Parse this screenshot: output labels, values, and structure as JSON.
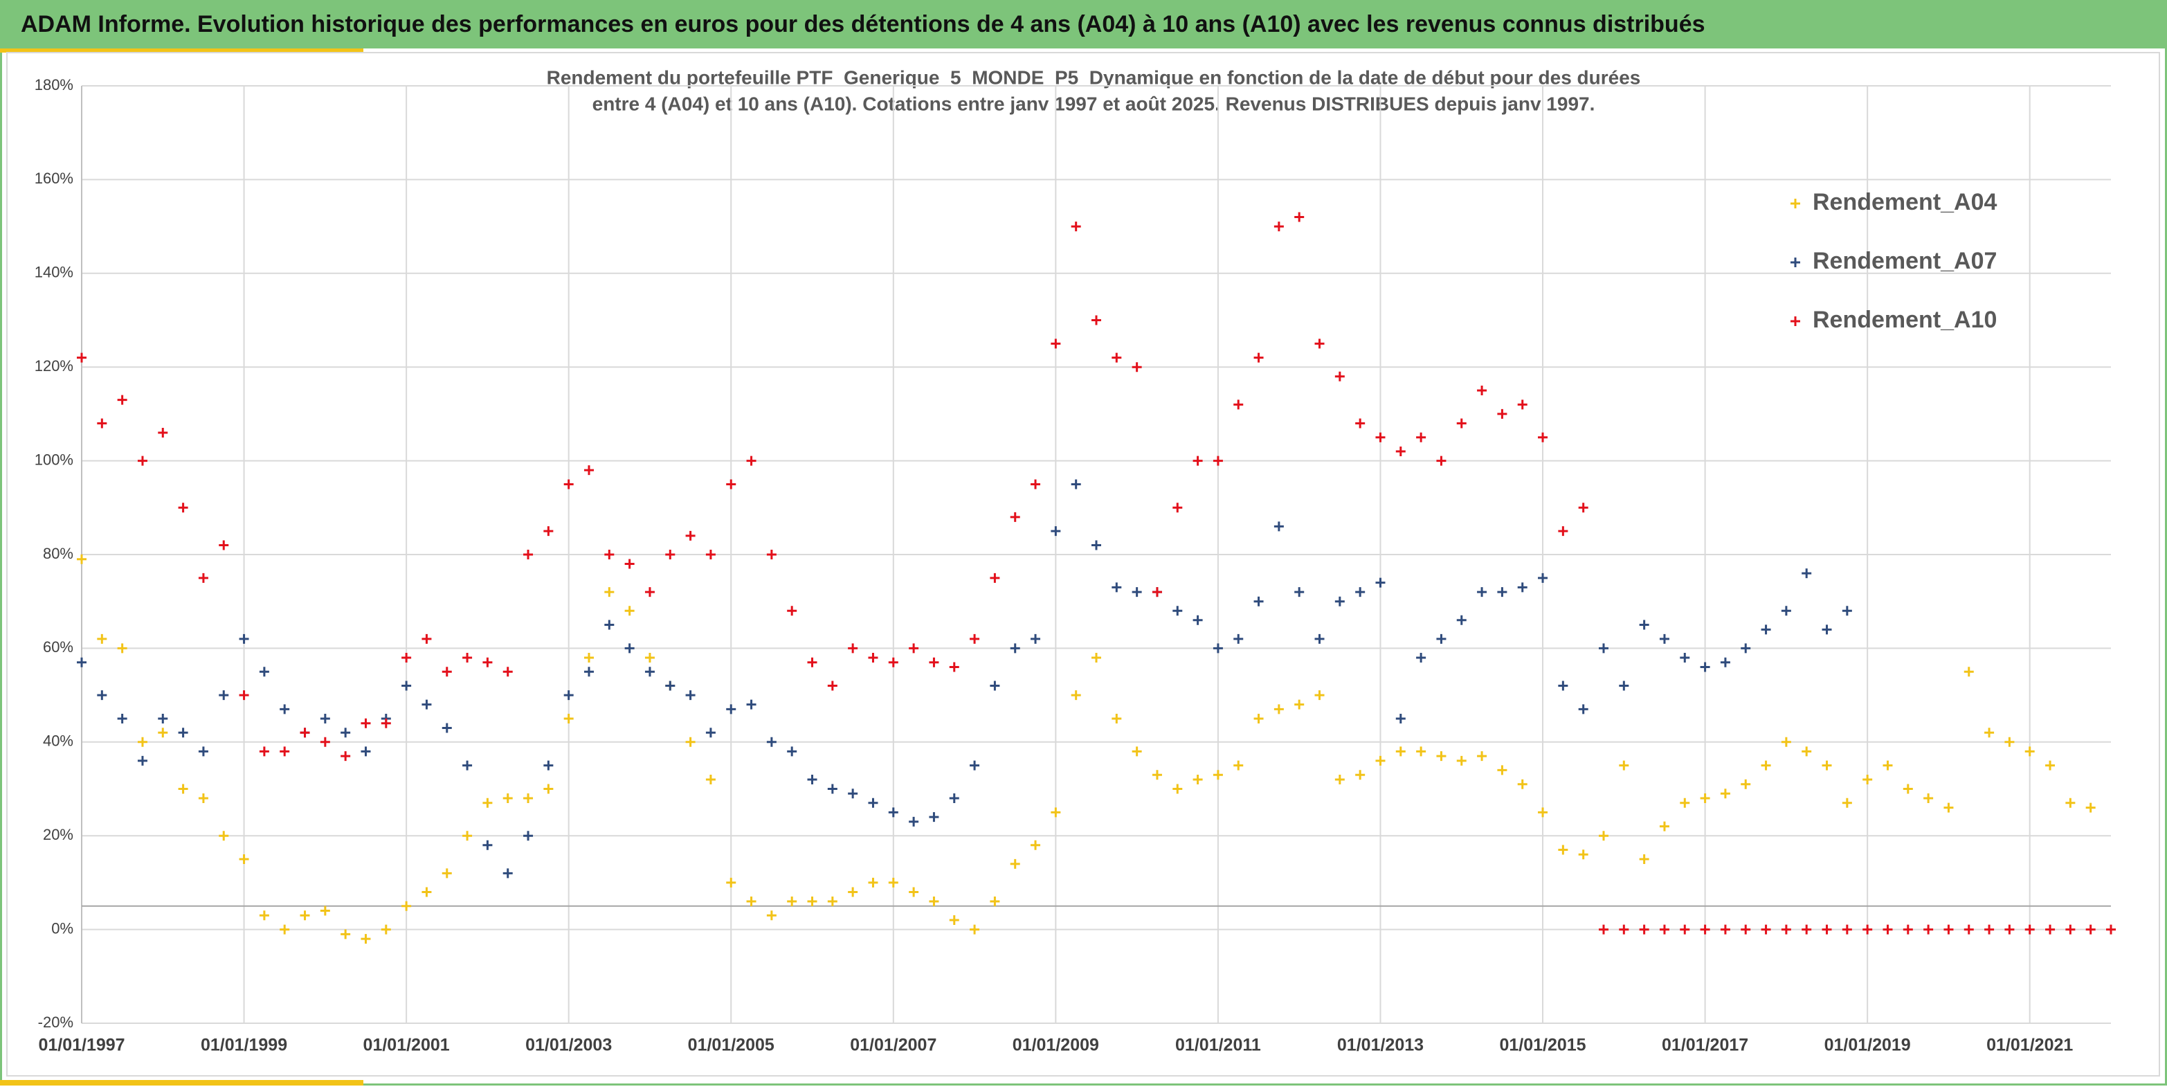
{
  "chart_data": {
    "type": "scatter",
    "title": "ADAM Informe. Evolution historique des performances en euros pour des détentions de 4 ans (A04) à 10 ans (A10) avec les revenus connus distribués",
    "subtitle": [
      "Rendement du portefeuille PTF_Generique_5_MONDE_P5_Dynamique  en fonction de la date de début pour des durées",
      "entre 4 (A04) et 10 ans (A10). Cotations entre janv 1997 et août 2025. Revenus DISTRIBUES depuis janv 1997."
    ],
    "x": [
      "01/01/1997",
      "01/04/1997",
      "01/07/1997",
      "01/10/1997",
      "01/01/1998",
      "01/04/1998",
      "01/07/1998",
      "01/10/1998",
      "01/01/1999",
      "01/04/1999",
      "01/07/1999",
      "01/10/1999",
      "01/01/2000",
      "01/04/2000",
      "01/07/2000",
      "01/10/2000",
      "01/01/2001",
      "01/04/2001",
      "01/07/2001",
      "01/10/2001",
      "01/01/2002",
      "01/04/2002",
      "01/07/2002",
      "01/10/2002",
      "01/01/2003",
      "01/04/2003",
      "01/07/2003",
      "01/10/2003",
      "01/01/2004",
      "01/04/2004",
      "01/07/2004",
      "01/10/2004",
      "01/01/2005",
      "01/04/2005",
      "01/07/2005",
      "01/10/2005",
      "01/01/2006",
      "01/04/2006",
      "01/07/2006",
      "01/10/2006",
      "01/01/2007",
      "01/04/2007",
      "01/07/2007",
      "01/10/2007",
      "01/01/2008",
      "01/04/2008",
      "01/07/2008",
      "01/10/2008",
      "01/01/2009",
      "01/04/2009",
      "01/07/2009",
      "01/10/2009",
      "01/01/2010",
      "01/04/2010",
      "01/07/2010",
      "01/10/2010",
      "01/01/2011",
      "01/04/2011",
      "01/07/2011",
      "01/10/2011",
      "01/01/2012",
      "01/04/2012",
      "01/07/2012",
      "01/10/2012",
      "01/01/2013",
      "01/04/2013",
      "01/07/2013",
      "01/10/2013",
      "01/01/2014",
      "01/04/2014",
      "01/07/2014",
      "01/10/2014",
      "01/01/2015",
      "01/04/2015",
      "01/07/2015",
      "01/10/2015",
      "01/01/2016",
      "01/04/2016",
      "01/07/2016",
      "01/10/2016",
      "01/01/2017",
      "01/04/2017",
      "01/07/2017",
      "01/10/2017",
      "01/01/2018",
      "01/04/2018",
      "01/07/2018",
      "01/10/2018",
      "01/01/2019",
      "01/04/2019",
      "01/07/2019",
      "01/10/2019",
      "01/01/2020",
      "01/04/2020",
      "01/07/2020",
      "01/10/2020",
      "01/01/2021",
      "01/04/2021",
      "01/07/2021",
      "01/10/2021",
      "01/01/2022"
    ],
    "series": [
      {
        "name": "Rendement_A04",
        "color": "#f2c318",
        "values": [
          79,
          62,
          60,
          40,
          42,
          30,
          28,
          20,
          15,
          3,
          0,
          3,
          4,
          -1,
          -2,
          0,
          5,
          8,
          12,
          20,
          27,
          28,
          28,
          30,
          45,
          58,
          72,
          68,
          58,
          52,
          40,
          32,
          10,
          6,
          3,
          6,
          6,
          6,
          8,
          10,
          10,
          8,
          6,
          2,
          0,
          6,
          14,
          18,
          25,
          50,
          58,
          45,
          38,
          33,
          30,
          32,
          33,
          35,
          45,
          47,
          48,
          50,
          32,
          33,
          36,
          38,
          38,
          37,
          36,
          37,
          34,
          31,
          25,
          17,
          16,
          20,
          35,
          15,
          22,
          27,
          28,
          29,
          31,
          35,
          40,
          38,
          35,
          27,
          32,
          35,
          30,
          28,
          26,
          55,
          42,
          40,
          38,
          35,
          27,
          26,
          null
        ]
      },
      {
        "name": "Rendement_A07",
        "color": "#2f4b7c",
        "values": [
          57,
          50,
          45,
          36,
          45,
          42,
          38,
          50,
          62,
          55,
          47,
          42,
          45,
          42,
          38,
          45,
          52,
          48,
          43,
          35,
          18,
          12,
          20,
          35,
          50,
          55,
          65,
          60,
          55,
          52,
          50,
          42,
          47,
          48,
          40,
          38,
          32,
          30,
          29,
          27,
          25,
          23,
          24,
          28,
          35,
          52,
          60,
          62,
          85,
          95,
          82,
          73,
          72,
          72,
          68,
          66,
          60,
          62,
          70,
          86,
          72,
          62,
          70,
          72,
          74,
          45,
          58,
          62,
          66,
          72,
          72,
          73,
          75,
          52,
          47,
          60,
          52,
          65,
          62,
          58,
          56,
          57,
          60,
          64,
          68,
          76,
          64,
          68,
          null,
          null,
          null,
          null,
          null,
          null,
          null,
          null,
          null,
          null,
          null,
          null,
          null
        ]
      },
      {
        "name": "Rendement_A10",
        "color": "#e3101b",
        "values": [
          122,
          108,
          113,
          100,
          106,
          90,
          75,
          82,
          50,
          38,
          38,
          42,
          40,
          37,
          44,
          44,
          58,
          62,
          55,
          58,
          57,
          55,
          80,
          85,
          95,
          98,
          80,
          78,
          72,
          80,
          84,
          80,
          95,
          100,
          80,
          68,
          57,
          52,
          60,
          58,
          57,
          60,
          57,
          56,
          62,
          75,
          88,
          95,
          125,
          150,
          130,
          122,
          120,
          72,
          90,
          100,
          100,
          112,
          122,
          150,
          152,
          125,
          118,
          108,
          105,
          102,
          105,
          100,
          108,
          115,
          110,
          112,
          105,
          85,
          90,
          0,
          0,
          0,
          0,
          0,
          0,
          0,
          0,
          0,
          0,
          0,
          0,
          0,
          0,
          0,
          0,
          0,
          0,
          0,
          0,
          0,
          0,
          0,
          0,
          0,
          0
        ]
      }
    ],
    "xlim": [
      "01/01/1997",
      "01/01/2022"
    ],
    "xticks": [
      "01/01/1997",
      "01/01/1999",
      "01/01/2001",
      "01/01/2003",
      "01/01/2005",
      "01/01/2007",
      "01/01/2009",
      "01/01/2011",
      "01/01/2013",
      "01/01/2015",
      "01/01/2017",
      "01/01/2019",
      "01/01/2021"
    ],
    "ylim": [
      -20,
      180
    ],
    "yticks": [
      {
        "value": -20,
        "label": "-20%"
      },
      {
        "value": 0,
        "label": "0%"
      },
      {
        "value": 20,
        "label": "20%"
      },
      {
        "value": 40,
        "label": "40%"
      },
      {
        "value": 60,
        "label": "60%"
      },
      {
        "value": 80,
        "label": "80%"
      },
      {
        "value": 100,
        "label": "100%"
      },
      {
        "value": 120,
        "label": "120%"
      },
      {
        "value": 140,
        "label": "140%"
      },
      {
        "value": 160,
        "label": "160%"
      },
      {
        "value": 180,
        "label": "180%"
      }
    ],
    "hline": 5,
    "grid": true,
    "legend": "upper right"
  }
}
